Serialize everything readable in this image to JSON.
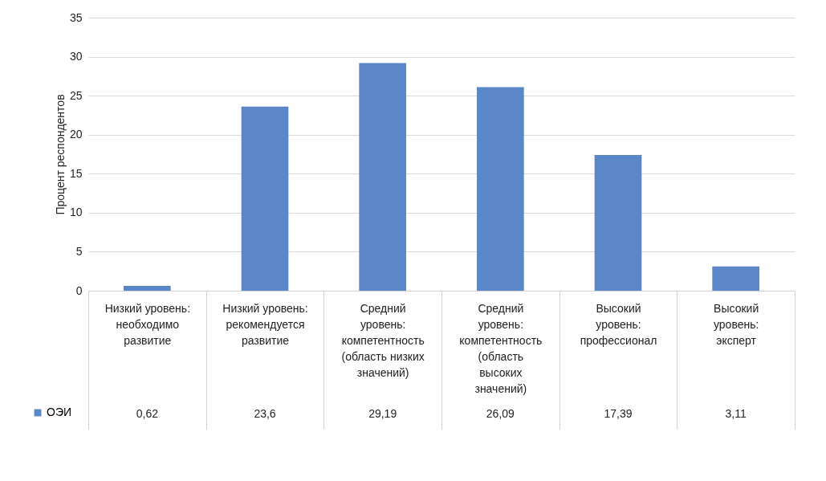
{
  "chart_data": {
    "type": "bar",
    "ylabel": "Процент респондентов",
    "categories": [
      "Низкий уровень: необходимо развитие",
      "Низкий уровень: рекомендуется развитие",
      "Средний уровень: компетентность (область низких значений)",
      "Средний уровень: компетентность (область высоких значений)",
      "Высокий уровень: профессионал",
      "Высокий уровень: эксперт"
    ],
    "series": [
      {
        "name": "ОЭИ",
        "color": "#5b87c9",
        "values": [
          0.62,
          23.6,
          29.19,
          26.09,
          17.39,
          3.11
        ]
      }
    ],
    "value_labels": [
      "0,62",
      "23,6",
      "29,19",
      "26,09",
      "17,39",
      "3,11"
    ],
    "ylim": [
      0,
      35
    ],
    "yticks": [
      0,
      5,
      10,
      15,
      20,
      25,
      30,
      35
    ],
    "grid": "y",
    "legend": "bottom left"
  }
}
